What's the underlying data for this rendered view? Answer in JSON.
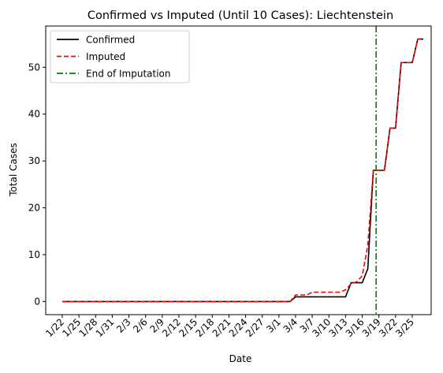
{
  "chart_data": {
    "type": "line",
    "title": "Confirmed vs Imputed (Until 10 Cases): Liechtenstein",
    "xlabel": "Date",
    "ylabel": "Total Cases",
    "x_tick_labels": [
      "1/22",
      "1/25",
      "1/28",
      "1/31",
      "2/3",
      "2/6",
      "2/9",
      "2/12",
      "2/15",
      "2/18",
      "2/21",
      "2/24",
      "2/27",
      "3/1",
      "3/4",
      "3/7",
      "3/10",
      "3/13",
      "3/16",
      "3/19",
      "3/22",
      "3/25"
    ],
    "y_ticks": [
      0,
      10,
      20,
      30,
      40,
      50
    ],
    "ylim": [
      -2.8,
      58.8
    ],
    "day_range": [
      0,
      64
    ],
    "grid": false,
    "legend_position": "upper left",
    "series": [
      {
        "name": "Confirmed",
        "color": "#000000",
        "style": "solid",
        "points": [
          [
            0,
            0
          ],
          [
            41,
            0
          ],
          [
            42,
            1
          ],
          [
            51,
            1
          ],
          [
            52,
            4
          ],
          [
            54,
            4
          ],
          [
            55,
            7
          ],
          [
            56,
            28
          ],
          [
            58,
            28
          ],
          [
            59,
            37
          ],
          [
            60,
            37
          ],
          [
            61,
            51
          ],
          [
            63,
            51
          ],
          [
            64,
            56
          ],
          [
            65,
            56
          ]
        ]
      },
      {
        "name": "Imputed",
        "color": "#ff0000",
        "style": "dashed",
        "points": [
          [
            0,
            0
          ],
          [
            41,
            0
          ],
          [
            42,
            1.4
          ],
          [
            44,
            1.4
          ],
          [
            45,
            2
          ],
          [
            50,
            2
          ],
          [
            51,
            2.5
          ],
          [
            52,
            3.8
          ],
          [
            53,
            4.2
          ],
          [
            54,
            5.5
          ],
          [
            55,
            12
          ],
          [
            56,
            28
          ],
          [
            58,
            28
          ],
          [
            59,
            37
          ],
          [
            60,
            37
          ],
          [
            61,
            51
          ],
          [
            63,
            51
          ],
          [
            64,
            56
          ],
          [
            65,
            56
          ]
        ]
      }
    ],
    "vline": {
      "name": "End of Imputation",
      "x": 56.5,
      "color": "#008000",
      "style": "dashdot"
    }
  }
}
